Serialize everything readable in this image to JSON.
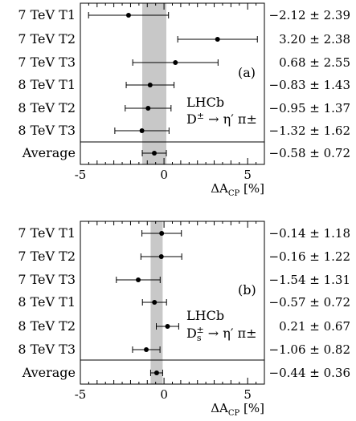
{
  "chart_data": [
    {
      "type": "scatter",
      "panel_label": "(a)",
      "experiment": "LHCb",
      "decay": "D± → η′ π±",
      "xlabel": "ΔA_CP [%]",
      "xlim": [
        -5,
        6
      ],
      "xticks": [
        -5,
        0,
        5
      ],
      "rows": [
        {
          "label": "7 TeV T1",
          "value": -2.12,
          "error": 2.39,
          "text": "−2.12 ± 2.39"
        },
        {
          "label": "7 TeV T2",
          "value": 3.2,
          "error": 2.38,
          "text": "3.20 ± 2.38"
        },
        {
          "label": "7 TeV T3",
          "value": 0.68,
          "error": 2.55,
          "text": "0.68 ± 2.55"
        },
        {
          "label": "8 TeV T1",
          "value": -0.83,
          "error": 1.43,
          "text": "−0.83 ± 1.43"
        },
        {
          "label": "8 TeV T2",
          "value": -0.95,
          "error": 1.37,
          "text": "−0.95 ± 1.37"
        },
        {
          "label": "8 TeV T3",
          "value": -1.32,
          "error": 1.62,
          "text": "−1.32 ± 1.62"
        },
        {
          "label": "Average",
          "value": -0.58,
          "error": 0.72,
          "text": "−0.58 ± 0.72"
        }
      ],
      "band": {
        "center": -0.58,
        "halfwidth": 0.72,
        "color": "#c8c8c8"
      }
    },
    {
      "type": "scatter",
      "panel_label": "(b)",
      "experiment": "LHCb",
      "decay": "Ds± → η′ π±",
      "xlabel": "ΔA_CP [%]",
      "xlim": [
        -5,
        6
      ],
      "xticks": [
        -5,
        0,
        5
      ],
      "rows": [
        {
          "label": "7 TeV T1",
          "value": -0.14,
          "error": 1.18,
          "text": "−0.14 ± 1.18"
        },
        {
          "label": "7 TeV T2",
          "value": -0.16,
          "error": 1.22,
          "text": "−0.16 ± 1.22"
        },
        {
          "label": "7 TeV T3",
          "value": -1.54,
          "error": 1.31,
          "text": "−1.54 ± 1.31"
        },
        {
          "label": "8 TeV T1",
          "value": -0.57,
          "error": 0.72,
          "text": "−0.57 ± 0.72"
        },
        {
          "label": "8 TeV T2",
          "value": 0.21,
          "error": 0.67,
          "text": "0.21 ± 0.67"
        },
        {
          "label": "8 TeV T3",
          "value": -1.06,
          "error": 0.82,
          "text": "−1.06 ± 0.82"
        },
        {
          "label": "Average",
          "value": -0.44,
          "error": 0.36,
          "text": "−0.44 ± 0.36"
        }
      ],
      "band": {
        "center": -0.44,
        "halfwidth": 0.36,
        "color": "#c8c8c8"
      }
    }
  ]
}
